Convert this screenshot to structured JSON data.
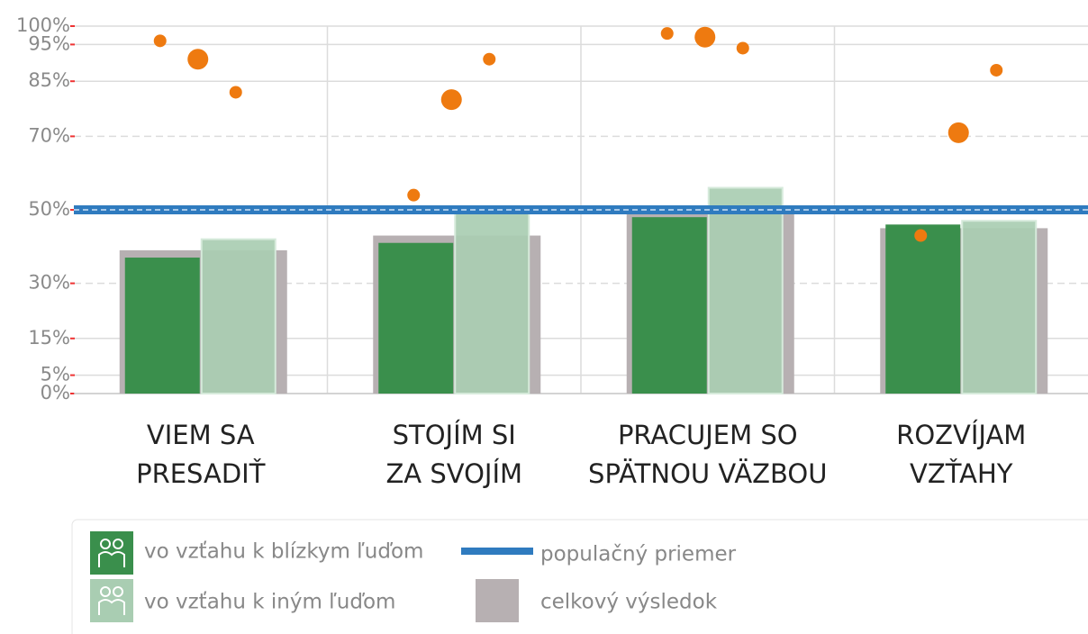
{
  "chart_data": {
    "type": "bar",
    "categories": [
      [
        "VIEM SA",
        "PRESADIŤ"
      ],
      [
        "STOJÍM SI",
        "ZA SVOJÍM"
      ],
      [
        "PRACUJEM SO",
        "SPÄTNOU VÄZBOU"
      ],
      [
        "ROZVÍJAM",
        "VZŤAHY"
      ]
    ],
    "series": [
      {
        "name": "celkový výsledok",
        "color": "#b7b0b2",
        "values": [
          39,
          43,
          51,
          45
        ]
      },
      {
        "name": "vo vzťahu k blízkym ľuďom",
        "color": "#3a8f4c",
        "values": [
          37,
          41,
          48,
          46
        ]
      },
      {
        "name": "vo vzťahu k iným ľuďom",
        "color": "#a9cdb2",
        "values": [
          42,
          50,
          56,
          47
        ]
      }
    ],
    "points": {
      "color": "#ee7a10",
      "values": [
        [
          96,
          91,
          82
        ],
        [
          54,
          80,
          91
        ],
        [
          98,
          97,
          94
        ],
        [
          43,
          71,
          88
        ]
      ]
    },
    "reference": {
      "name": "populačný priemer",
      "color": "#2f7bbf",
      "value": 50
    },
    "ylim": [
      0,
      100
    ],
    "yticks": [
      {
        "value": 0,
        "label": "0%"
      },
      {
        "value": 5,
        "label": "5%"
      },
      {
        "value": 15,
        "label": "15%"
      },
      {
        "value": 30,
        "label": "30%"
      },
      {
        "value": 50,
        "label": "50%"
      },
      {
        "value": 70,
        "label": "70%"
      },
      {
        "value": 85,
        "label": "85%"
      },
      {
        "value": 95,
        "label": "95%"
      },
      {
        "value": 100,
        "label": "100%"
      }
    ],
    "grid": true
  }
}
